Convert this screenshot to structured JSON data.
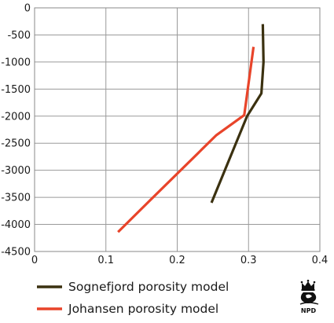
{
  "chart_data": {
    "type": "line",
    "title": "",
    "xlabel": "",
    "ylabel": "",
    "xlim": [
      0,
      0.4
    ],
    "ylim": [
      -4500,
      0
    ],
    "x_ticks": [
      0,
      0.1,
      0.2,
      0.3,
      0.4
    ],
    "x_tick_labels": [
      "0",
      "0.1",
      "0.2",
      "0.3",
      "0.4"
    ],
    "y_ticks": [
      0,
      -500,
      -1000,
      -1500,
      -2000,
      -2500,
      -3000,
      -3500,
      -4000,
      -4500
    ],
    "y_tick_labels": [
      "0",
      "-500",
      "-1000",
      "-1500",
      "-2000",
      "-2500",
      "-3000",
      "-3500",
      "-4000",
      "-4500"
    ],
    "grid": true,
    "legend_position": "bottom-left",
    "series": [
      {
        "name": "Sognefjord porosity model",
        "color": "#3b3110",
        "points": [
          {
            "x": 0.32,
            "y": -300
          },
          {
            "x": 0.321,
            "y": -1000
          },
          {
            "x": 0.318,
            "y": -1580
          },
          {
            "x": 0.298,
            "y": -2000
          },
          {
            "x": 0.248,
            "y": -3600
          }
        ]
      },
      {
        "name": "Johansen porosity model",
        "color": "#e8442a",
        "points": [
          {
            "x": 0.307,
            "y": -720
          },
          {
            "x": 0.294,
            "y": -1980
          },
          {
            "x": 0.255,
            "y": -2350
          },
          {
            "x": 0.16,
            "y": -3580
          },
          {
            "x": 0.117,
            "y": -4140
          }
        ]
      }
    ]
  },
  "logo": {
    "text": "NPD",
    "icon": "npd-logo-icon",
    "color": "#111111"
  }
}
